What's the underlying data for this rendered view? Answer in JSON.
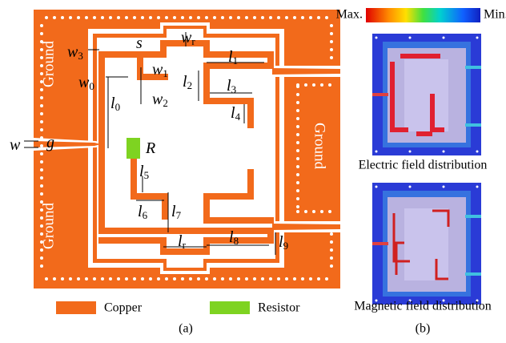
{
  "panel_a": {
    "ground": [
      "Ground",
      "Ground",
      "Ground"
    ],
    "dimensions": [
      {
        "symbol": "w",
        "sub": "r"
      },
      {
        "symbol": "s"
      },
      {
        "symbol": "w",
        "sub": "3"
      },
      {
        "symbol": "l",
        "sub": "1"
      },
      {
        "symbol": "w",
        "sub": "1"
      },
      {
        "symbol": "w",
        "sub": "0"
      },
      {
        "symbol": "l",
        "sub": "2"
      },
      {
        "symbol": "l",
        "sub": "3"
      },
      {
        "symbol": "l",
        "sub": "0"
      },
      {
        "symbol": "w",
        "sub": "2"
      },
      {
        "symbol": "l",
        "sub": "4"
      },
      {
        "symbol": "w"
      },
      {
        "symbol": "g"
      },
      {
        "symbol": "R"
      },
      {
        "symbol": "l",
        "sub": "5"
      },
      {
        "symbol": "l",
        "sub": "6"
      },
      {
        "symbol": "l",
        "sub": "7"
      },
      {
        "symbol": "l",
        "sub": "8"
      },
      {
        "symbol": "l",
        "sub": "r"
      },
      {
        "symbol": "l",
        "sub": "9"
      }
    ],
    "legend": [
      "Copper",
      "Resistor"
    ],
    "caption": "(a)"
  },
  "panel_b": {
    "colorbar": {
      "max": "Max.",
      "min": "Min."
    },
    "captions": [
      "Electric field distribution",
      "Magnetic field distribution"
    ],
    "caption": "(b)"
  }
}
